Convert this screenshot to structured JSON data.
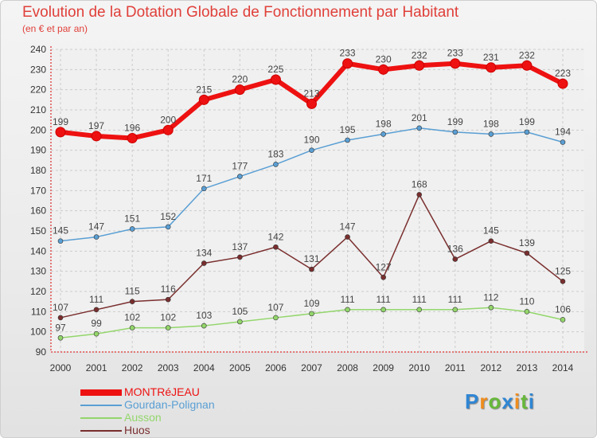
{
  "header": {
    "title": "Evolution de la Dotation Globale de Fonctionnement par Habitant",
    "subtitle": "(en € et par an)"
  },
  "brand": {
    "letters": [
      "P",
      "r",
      "o",
      "x",
      "i",
      "t",
      "i"
    ],
    "colors": [
      "#2f86d4",
      "#f08c1c",
      "#67b83a",
      "#2f86d4",
      "#f08c1c",
      "#67b83a",
      "#2f86d4"
    ]
  },
  "chart_data": {
    "type": "line",
    "title": "Evolution de la Dotation Globale de Fonctionnement par Habitant",
    "subtitle": "(en € et par an)",
    "xlabel": "",
    "ylabel": "",
    "ylim": [
      90,
      240
    ],
    "yticks": [
      90,
      100,
      110,
      120,
      130,
      140,
      150,
      160,
      170,
      180,
      190,
      200,
      210,
      220,
      230,
      240
    ],
    "grid": true,
    "legend_position": "bottom-left",
    "categories": [
      "2000",
      "2001",
      "2002",
      "2003",
      "2004",
      "2005",
      "2006",
      "2007",
      "2008",
      "2009",
      "2010",
      "2011",
      "2012",
      "2013",
      "2014"
    ],
    "series": [
      {
        "name": "MONTRéJEAU",
        "color": "#ee1111",
        "values": [
          199,
          197,
          196,
          200,
          215,
          220,
          225,
          213,
          233,
          230,
          232,
          233,
          231,
          232,
          223
        ]
      },
      {
        "name": "Gourdan-Polignan",
        "color": "#5a9fd4",
        "values": [
          145,
          147,
          151,
          152,
          171,
          177,
          183,
          190,
          195,
          198,
          201,
          199,
          198,
          199,
          194
        ]
      },
      {
        "name": "Ausson",
        "color": "#93d66b",
        "values": [
          97,
          99,
          102,
          102,
          103,
          105,
          107,
          109,
          111,
          111,
          111,
          111,
          112,
          110,
          106
        ]
      },
      {
        "name": "Huos",
        "color": "#7a2e2e",
        "values": [
          107,
          111,
          115,
          116,
          134,
          137,
          142,
          131,
          147,
          127,
          168,
          136,
          145,
          139,
          125
        ]
      }
    ]
  }
}
